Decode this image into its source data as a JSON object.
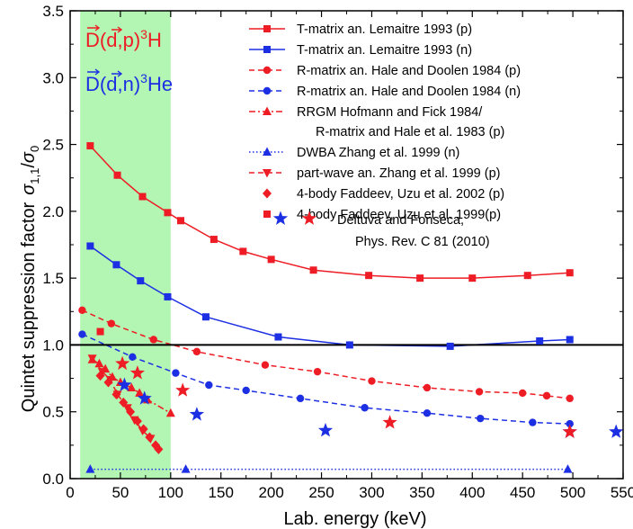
{
  "chart_data": {
    "type": "scatter",
    "xlabel": "Lab. energy (keV)",
    "ylabel_main": "Quintet suppression factor",
    "ylabel_sym": "σ",
    "ylabel_sub1": "1,1",
    "ylabel_sub2": "0",
    "xlim": [
      0,
      550
    ],
    "ylim": [
      0,
      3.5
    ],
    "xticks": [
      "0",
      "50",
      "100",
      "150",
      "200",
      "250",
      "300",
      "350",
      "400",
      "450",
      "500",
      "550"
    ],
    "yticks": [
      "0.0",
      "0.5",
      "1.0",
      "1.5",
      "2.0",
      "2.5",
      "3.0",
      "3.5"
    ],
    "highlight_band": [
      10,
      100
    ],
    "reference_line": 1.0,
    "reaction_labels": [
      {
        "pre": "D",
        "mid": "(",
        "proj": "d",
        "post": ",p)",
        "sup": "3",
        "tail": "H",
        "color": "#ee1c24"
      },
      {
        "pre": "D",
        "mid": "(",
        "proj": "d",
        "post": ",n)",
        "sup": "3",
        "tail": "He",
        "color": "#1d2fe3"
      }
    ],
    "colors": {
      "red": "#ee1c24",
      "blue": "#1d2fe3",
      "band": "#b3f5b3"
    },
    "series": [
      {
        "name": "T-matrix an. Lemaitre 1993 (p)",
        "color": "#ee1c24",
        "marker": "square",
        "line": "solid",
        "x": [
          20,
          47,
          72,
          97,
          110,
          143,
          172,
          200,
          242,
          297,
          348,
          400,
          455,
          497
        ],
        "y": [
          2.49,
          2.27,
          2.11,
          1.99,
          1.93,
          1.79,
          1.7,
          1.64,
          1.56,
          1.52,
          1.5,
          1.5,
          1.52,
          1.54
        ]
      },
      {
        "name": "T-matrix an. Lemaitre 1993 (n)",
        "color": "#1d2fe3",
        "marker": "square",
        "line": "solid",
        "x": [
          20,
          46,
          70,
          97,
          135,
          207,
          278,
          378,
          467,
          497
        ],
        "y": [
          1.74,
          1.6,
          1.48,
          1.36,
          1.21,
          1.06,
          1.0,
          0.99,
          1.03,
          1.04
        ]
      },
      {
        "name": "R-matrix an. Hale and Doolen 1984 (p)",
        "color": "#ee1c24",
        "marker": "circle",
        "line": "dashed",
        "x": [
          12,
          41,
          83,
          126,
          194,
          246,
          300,
          355,
          407,
          450,
          474,
          497
        ],
        "y": [
          1.26,
          1.16,
          1.04,
          0.95,
          0.85,
          0.8,
          0.73,
          0.68,
          0.65,
          0.64,
          0.62,
          0.6
        ]
      },
      {
        "name": "R-matrix an. Hale and Doolen 1984 (n)",
        "color": "#1d2fe3",
        "marker": "circle",
        "line": "dashed",
        "x": [
          12,
          62,
          105,
          138,
          175,
          229,
          293,
          355,
          408,
          460,
          497
        ],
        "y": [
          1.08,
          0.91,
          0.79,
          0.7,
          0.66,
          0.6,
          0.53,
          0.49,
          0.45,
          0.42,
          0.41
        ]
      },
      {
        "name": "RRGM Hofmann and Fick 1984/",
        "name2": "R-matrix and Hale et al. 1983 (p)",
        "color": "#ee1c24",
        "marker": "triangle-up",
        "line": "dashdot",
        "x": [
          22,
          29,
          35,
          42,
          50,
          61,
          69,
          77,
          100
        ],
        "y": [
          0.89,
          0.86,
          0.82,
          0.76,
          0.72,
          0.68,
          0.64,
          0.59,
          0.49
        ]
      },
      {
        "name": "DWBA Zhang et al. 1999 (n)",
        "color": "#1d2fe3",
        "marker": "triangle-up",
        "line": "dotted",
        "x": [
          20,
          115,
          495
        ],
        "y": [
          0.07,
          0.07,
          0.07
        ]
      },
      {
        "name": "part-wave an. Zhang et al. 1999 (p)",
        "color": "#ee1c24",
        "marker": "triangle-down",
        "line": "dashed",
        "x": [
          22,
          32,
          40,
          47,
          57,
          64,
          72,
          80
        ],
        "y": [
          0.9,
          0.8,
          0.74,
          0.63,
          0.53,
          0.44,
          0.36,
          0.3
        ]
      },
      {
        "name": "4-body Faddeev, Uzu et al. 2002 (p)",
        "color": "#ee1c24",
        "marker": "diamond",
        "line": "none",
        "x": [
          30,
          38,
          46,
          53,
          60,
          67,
          73,
          79,
          85,
          88
        ],
        "y": [
          0.77,
          0.72,
          0.63,
          0.57,
          0.5,
          0.43,
          0.37,
          0.31,
          0.25,
          0.22
        ]
      },
      {
        "name": "4-body Faddeev, Uzu et al. 1999(p)",
        "color": "#ee1c24",
        "marker": "square",
        "line": "none",
        "x": [
          30
        ],
        "y": [
          1.1
        ]
      },
      {
        "name": "Deltuva and Fonseca,",
        "name2": "Phys. Rev. C 81 (2010)",
        "color": "#1d2fe3",
        "color2": "#ee1c24",
        "marker": "star",
        "line": "none",
        "x": [
          54,
          74,
          126,
          254,
          497,
          543
        ],
        "y": [
          0.7,
          0.6,
          0.48,
          0.36,
          0.35,
          0.35
        ]
      },
      {
        "name": "",
        "color": "#ee1c24",
        "marker": "star",
        "line": "none",
        "x": [
          52,
          67,
          112,
          318,
          497
        ],
        "y": [
          0.86,
          0.79,
          0.66,
          0.42,
          0.35
        ]
      }
    ]
  }
}
